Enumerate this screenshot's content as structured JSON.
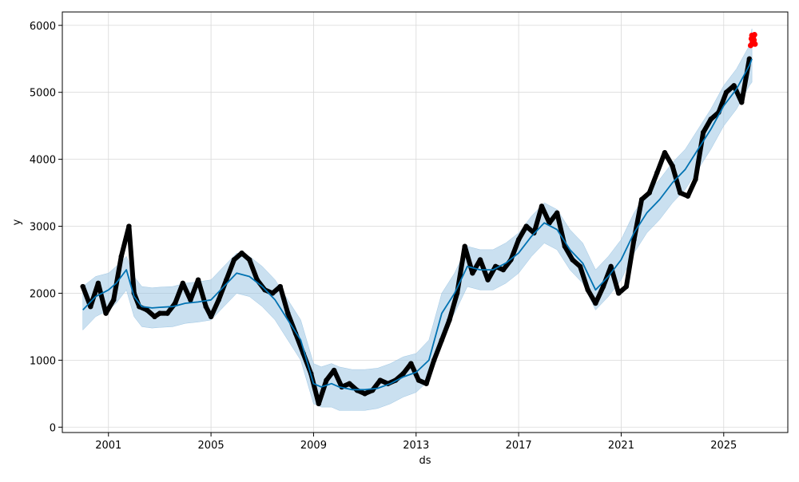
{
  "chart_data": {
    "type": "line",
    "title": "",
    "xlabel": "ds",
    "ylabel": "y",
    "x_ticks": [
      "2001",
      "2005",
      "2009",
      "2013",
      "2017",
      "2021",
      "2025"
    ],
    "y_ticks": [
      "0",
      "1000",
      "2000",
      "3000",
      "4000",
      "5000",
      "6000"
    ],
    "xlim": [
      1999.2,
      2027.5
    ],
    "ylim": [
      -80,
      6200
    ],
    "grid": true,
    "legend": "none",
    "colors": {
      "observed": "#000000",
      "forecast_line": "#0072B2",
      "uncertainty_band": "#9ec6e3",
      "recent_points": "#ff0000",
      "grid": "#d9d9d9"
    },
    "series": [
      {
        "role": "forecast",
        "x": [
          2000.0,
          2000.5,
          2001.0,
          2001.3,
          2001.7,
          2002.0,
          2002.3,
          2002.7,
          2003.0,
          2003.5,
          2004.0,
          2004.5,
          2005.0,
          2005.5,
          2006.0,
          2006.5,
          2007.0,
          2007.5,
          2008.0,
          2008.5,
          2009.0,
          2009.3,
          2009.7,
          2010.0,
          2010.5,
          2011.0,
          2011.5,
          2012.0,
          2012.5,
          2013.0,
          2013.5,
          2014.0,
          2014.5,
          2015.0,
          2015.5,
          2016.0,
          2016.5,
          2017.0,
          2017.5,
          2018.0,
          2018.5,
          2019.0,
          2019.5,
          2020.0,
          2020.5,
          2021.0,
          2021.5,
          2022.0,
          2022.5,
          2023.0,
          2023.5,
          2024.0,
          2024.5,
          2025.0,
          2025.5,
          2026.0,
          2026.1
        ],
        "y": [
          1750,
          1950,
          2050,
          2150,
          2350,
          1950,
          1800,
          1780,
          1790,
          1800,
          1850,
          1870,
          1900,
          2100,
          2300,
          2250,
          2100,
          1900,
          1600,
          1300,
          650,
          600,
          650,
          600,
          560,
          560,
          580,
          650,
          750,
          820,
          1000,
          1700,
          2000,
          2400,
          2350,
          2350,
          2450,
          2600,
          2850,
          3050,
          2950,
          2650,
          2450,
          2050,
          2250,
          2500,
          2900,
          3200,
          3400,
          3650,
          3850,
          4150,
          4450,
          4800,
          5050,
          5400,
          5500
        ]
      },
      {
        "role": "forecast_upper",
        "x": [
          2000.0,
          2000.5,
          2001.0,
          2001.3,
          2001.7,
          2002.0,
          2002.3,
          2002.7,
          2003.0,
          2003.5,
          2004.0,
          2004.5,
          2005.0,
          2005.5,
          2006.0,
          2006.5,
          2007.0,
          2007.5,
          2008.0,
          2008.5,
          2009.0,
          2009.3,
          2009.7,
          2010.0,
          2010.5,
          2011.0,
          2011.5,
          2012.0,
          2012.5,
          2013.0,
          2013.5,
          2014.0,
          2014.5,
          2015.0,
          2015.5,
          2016.0,
          2016.5,
          2017.0,
          2017.5,
          2018.0,
          2018.5,
          2019.0,
          2019.5,
          2020.0,
          2020.5,
          2021.0,
          2021.5,
          2022.0,
          2022.5,
          2023.0,
          2023.5,
          2024.0,
          2024.5,
          2025.0,
          2025.5,
          2026.0,
          2026.1
        ],
        "y": [
          2100,
          2250,
          2300,
          2400,
          2550,
          2250,
          2100,
          2080,
          2090,
          2100,
          2150,
          2170,
          2200,
          2400,
          2600,
          2550,
          2400,
          2200,
          1900,
          1600,
          950,
          900,
          950,
          900,
          860,
          860,
          880,
          950,
          1050,
          1100,
          1300,
          2000,
          2300,
          2700,
          2650,
          2650,
          2750,
          2900,
          3150,
          3350,
          3250,
          2950,
          2750,
          2350,
          2550,
          2800,
          3200,
          3500,
          3700,
          3950,
          4150,
          4450,
          4750,
          5100,
          5350,
          5700,
          5950
        ]
      },
      {
        "role": "forecast_lower",
        "x": [
          2000.0,
          2000.5,
          2001.0,
          2001.3,
          2001.7,
          2002.0,
          2002.3,
          2002.7,
          2003.0,
          2003.5,
          2004.0,
          2004.5,
          2005.0,
          2005.5,
          2006.0,
          2006.5,
          2007.0,
          2007.5,
          2008.0,
          2008.5,
          2009.0,
          2009.3,
          2009.7,
          2010.0,
          2010.5,
          2011.0,
          2011.5,
          2012.0,
          2012.5,
          2013.0,
          2013.5,
          2014.0,
          2014.5,
          2015.0,
          2015.5,
          2016.0,
          2016.5,
          2017.0,
          2017.5,
          2018.0,
          2018.5,
          2019.0,
          2019.5,
          2020.0,
          2020.5,
          2021.0,
          2021.5,
          2022.0,
          2022.5,
          2023.0,
          2023.5,
          2024.0,
          2024.5,
          2025.0,
          2025.5,
          2026.0,
          2026.1
        ],
        "y": [
          1450,
          1650,
          1750,
          1850,
          2050,
          1650,
          1500,
          1480,
          1490,
          1500,
          1550,
          1570,
          1600,
          1800,
          2000,
          1950,
          1800,
          1600,
          1300,
          1000,
          350,
          300,
          300,
          250,
          250,
          250,
          280,
          350,
          450,
          520,
          700,
          1400,
          1700,
          2100,
          2050,
          2050,
          2150,
          2300,
          2550,
          2750,
          2650,
          2350,
          2150,
          1750,
          1950,
          2200,
          2600,
          2900,
          3100,
          3350,
          3550,
          3850,
          4150,
          4500,
          4750,
          5100,
          5150
        ]
      },
      {
        "role": "observed",
        "x": [
          2000.0,
          2000.3,
          2000.6,
          2000.9,
          2001.2,
          2001.5,
          2001.8,
          2002.0,
          2002.2,
          2002.5,
          2002.8,
          2003.0,
          2003.3,
          2003.6,
          2003.9,
          2004.2,
          2004.5,
          2004.8,
          2005.0,
          2005.3,
          2005.6,
          2005.9,
          2006.2,
          2006.5,
          2006.8,
          2007.1,
          2007.4,
          2007.7,
          2008.0,
          2008.3,
          2008.6,
          2008.9,
          2009.2,
          2009.5,
          2009.8,
          2010.1,
          2010.4,
          2010.7,
          2011.0,
          2011.3,
          2011.6,
          2011.9,
          2012.2,
          2012.5,
          2012.8,
          2013.1,
          2013.4,
          2013.7,
          2014.0,
          2014.3,
          2014.6,
          2014.9,
          2015.2,
          2015.5,
          2015.8,
          2016.1,
          2016.4,
          2016.7,
          2017.0,
          2017.3,
          2017.6,
          2017.9,
          2018.2,
          2018.5,
          2018.8,
          2019.1,
          2019.4,
          2019.7,
          2020.0,
          2020.3,
          2020.6,
          2020.9,
          2021.2,
          2021.5,
          2021.8,
          2022.1,
          2022.4,
          2022.7,
          2023.0,
          2023.3,
          2023.6,
          2023.9,
          2024.2,
          2024.5,
          2024.8,
          2025.1,
          2025.4,
          2025.7,
          2026.0
        ],
        "y": [
          2100,
          1800,
          2150,
          1700,
          1900,
          2550,
          3000,
          2000,
          1800,
          1750,
          1650,
          1700,
          1700,
          1850,
          2150,
          1900,
          2200,
          1800,
          1650,
          1900,
          2200,
          2500,
          2600,
          2500,
          2200,
          2050,
          2000,
          2100,
          1700,
          1400,
          1100,
          800,
          350,
          700,
          850,
          600,
          650,
          550,
          500,
          550,
          700,
          650,
          700,
          800,
          950,
          700,
          650,
          1000,
          1300,
          1600,
          2000,
          2700,
          2300,
          2500,
          2200,
          2400,
          2350,
          2500,
          2800,
          3000,
          2900,
          3300,
          3050,
          3200,
          2700,
          2500,
          2400,
          2050,
          1850,
          2100,
          2400,
          2000,
          2100,
          2800,
          3400,
          3500,
          3800,
          4100,
          3900,
          3500,
          3450,
          3700,
          4400,
          4600,
          4700,
          5000,
          5100,
          4850,
          5500
        ]
      },
      {
        "role": "recent",
        "x": [
          2026.05,
          2026.08,
          2026.1,
          2026.12,
          2026.15,
          2026.18,
          2026.2,
          2026.22
        ],
        "y": [
          5700,
          5800,
          5850,
          5750,
          5820,
          5780,
          5860,
          5720
        ]
      }
    ]
  }
}
